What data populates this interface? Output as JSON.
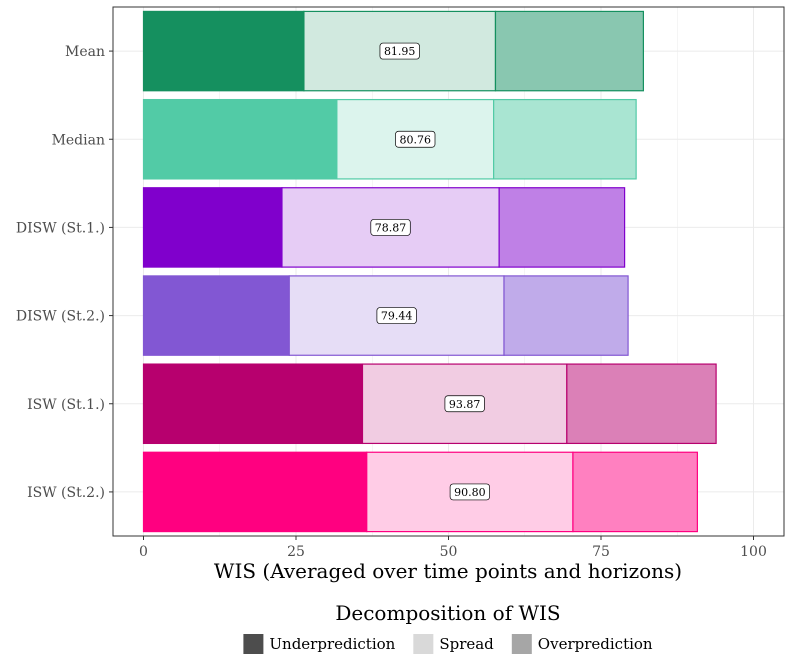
{
  "chart_data": {
    "type": "bar",
    "orientation": "horizontal",
    "stacked": true,
    "xlabel": "WIS (Averaged over time points and horizons)",
    "ylabel": "",
    "xlim": [
      -5,
      105
    ],
    "xticks": [
      0,
      25,
      50,
      75,
      100
    ],
    "grid": true,
    "categories": [
      "Mean",
      "Median",
      "DISW (St.1.)",
      "DISW (St.2.)",
      "ISW (St.1.)",
      "ISW (St.2.)"
    ],
    "components": [
      "Underprediction",
      "Spread",
      "Overprediction"
    ],
    "bars": [
      {
        "category": "Mean",
        "underprediction": 26.3,
        "spread": 31.4,
        "overprediction": 24.25,
        "total": 81.95,
        "total_label": "81.95",
        "color": "#15905f",
        "colors": [
          "#15905f",
          "#d1e9df",
          "#89c7b0"
        ]
      },
      {
        "category": "Median",
        "underprediction": 31.7,
        "spread": 25.7,
        "overprediction": 23.36,
        "total": 80.76,
        "total_label": "80.76",
        "color": "#52cba6",
        "colors": [
          "#52cba6",
          "#dcf4ed",
          "#a9e5d2"
        ]
      },
      {
        "category": "DISW (St.1.)",
        "underprediction": 22.7,
        "spread": 35.6,
        "overprediction": 20.57,
        "total": 78.87,
        "total_label": "78.87",
        "color": "#8000cc",
        "colors": [
          "#8000cc",
          "#e6ccf5",
          "#bf80e6"
        ]
      },
      {
        "category": "DISW (St.2.)",
        "underprediction": 23.9,
        "spread": 35.2,
        "overprediction": 20.34,
        "total": 79.44,
        "total_label": "79.44",
        "color": "#8257d3",
        "colors": [
          "#8257d3",
          "#e6ddf6",
          "#c0abea"
        ]
      },
      {
        "category": "ISW (St.1.)",
        "underprediction": 35.9,
        "spread": 33.5,
        "overprediction": 24.47,
        "total": 93.87,
        "total_label": "93.87",
        "color": "#b7006e",
        "colors": [
          "#b7006e",
          "#f1cce2",
          "#db80b7"
        ]
      },
      {
        "category": "ISW (St.2.)",
        "underprediction": 36.6,
        "spread": 33.8,
        "overprediction": 20.4,
        "total": 90.8,
        "total_label": "90.80",
        "color": "#ff0080",
        "colors": [
          "#ff0080",
          "#ffcce6",
          "#ff80c0"
        ]
      }
    ],
    "legend": {
      "title": "Decomposition of WIS",
      "placement": "bottom",
      "items": [
        {
          "label": "Underprediction",
          "color": "#4d4d4d"
        },
        {
          "label": "Spread",
          "color": "#d9d9d9"
        },
        {
          "label": "Overprediction",
          "color": "#a6a6a6"
        }
      ]
    }
  }
}
